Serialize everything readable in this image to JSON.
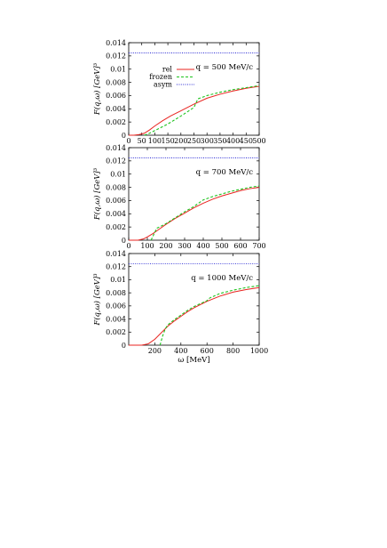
{
  "colors": {
    "rel": "#e8231f",
    "frozen": "#1ec31e",
    "asym": "#2a2ad4",
    "axis": "#000000"
  },
  "chart_data": [
    {
      "type": "line",
      "annotation": "q = 500 MeV/c",
      "ylabel": "F(q,ω) [GeV]³",
      "xlabel": "",
      "xlim": [
        0,
        500
      ],
      "ylim": [
        0,
        0.014
      ],
      "xticks": [
        0,
        50,
        100,
        150,
        200,
        250,
        300,
        350,
        400,
        450,
        500
      ],
      "yticks": [
        "0",
        "0.002",
        "0.004",
        "0.006",
        "0.008",
        "0.01",
        "0.012",
        "0.014"
      ],
      "yticks_values": [
        0,
        0.002,
        0.004,
        0.006,
        0.008,
        0.01,
        0.012,
        0.014
      ],
      "legend": {
        "position": "top-left",
        "entries": [
          "rel",
          "frozen",
          "asym"
        ]
      },
      "series": [
        {
          "name": "rel",
          "style": "solid",
          "x": [
            0,
            20,
            40,
            60,
            80,
            100,
            130,
            160,
            200,
            250,
            300,
            350,
            400,
            450,
            500
          ],
          "y": [
            0,
            0,
            0.0001,
            0.0003,
            0.0008,
            0.0014,
            0.0022,
            0.0029,
            0.0037,
            0.0047,
            0.0056,
            0.0062,
            0.0067,
            0.0071,
            0.0074
          ]
        },
        {
          "name": "frozen",
          "style": "dashed",
          "x": [
            60,
            80,
            100,
            150,
            200,
            250,
            265,
            300,
            350,
            400,
            450,
            500
          ],
          "y": [
            0,
            0.0003,
            0.0007,
            0.0017,
            0.0029,
            0.0042,
            0.0055,
            0.006,
            0.0065,
            0.0069,
            0.0072,
            0.0075
          ]
        },
        {
          "name": "asym",
          "style": "dotted",
          "x": [
            0,
            500
          ],
          "y": [
            0.01245,
            0.01245
          ]
        }
      ]
    },
    {
      "type": "line",
      "annotation": "q = 700 MeV/c",
      "ylabel": "F(q,ω) [GeV]³",
      "xlabel": "",
      "xlim": [
        0,
        700
      ],
      "ylim": [
        0,
        0.014
      ],
      "xticks": [
        0,
        100,
        200,
        300,
        400,
        500,
        600,
        700
      ],
      "yticks": [
        "0",
        "0.002",
        "0.004",
        "0.006",
        "0.008",
        "0.01",
        "0.012",
        "0.014"
      ],
      "yticks_values": [
        0,
        0.002,
        0.004,
        0.006,
        0.008,
        0.01,
        0.012,
        0.014
      ],
      "series": [
        {
          "name": "rel",
          "style": "solid",
          "x": [
            0,
            50,
            80,
            100,
            130,
            160,
            200,
            250,
            300,
            350,
            400,
            450,
            500,
            550,
            600,
            650,
            700
          ],
          "y": [
            0,
            0,
            0.0002,
            0.0005,
            0.001,
            0.0016,
            0.0024,
            0.0033,
            0.0041,
            0.0049,
            0.0056,
            0.0062,
            0.0067,
            0.0071,
            0.0075,
            0.0078,
            0.008
          ]
        },
        {
          "name": "frozen",
          "style": "dashed",
          "x": [
            120,
            130,
            140,
            150,
            200,
            250,
            300,
            350,
            380,
            400,
            450,
            500,
            550,
            600,
            650,
            700
          ],
          "y": [
            0,
            0.0006,
            0.0012,
            0.0018,
            0.0025,
            0.0034,
            0.0043,
            0.0051,
            0.0057,
            0.0061,
            0.0066,
            0.007,
            0.0074,
            0.0077,
            0.008,
            0.0082
          ]
        },
        {
          "name": "asym",
          "style": "dotted",
          "x": [
            0,
            700
          ],
          "y": [
            0.01245,
            0.01245
          ]
        }
      ]
    },
    {
      "type": "line",
      "annotation": "q = 1000 MeV/c",
      "ylabel": "F(q,ω) [GeV]³",
      "xlabel": "ω [MeV]",
      "xlim": [
        0,
        1000
      ],
      "ylim": [
        0,
        0.014
      ],
      "xticks": [
        200,
        400,
        600,
        800,
        1000
      ],
      "yticks": [
        "0",
        "0.002",
        "0.004",
        "0.006",
        "0.008",
        "0.01",
        "0.012",
        "0.014"
      ],
      "yticks_values": [
        0,
        0.002,
        0.004,
        0.006,
        0.008,
        0.01,
        0.012,
        0.014
      ],
      "series": [
        {
          "name": "rel",
          "style": "solid",
          "x": [
            0,
            100,
            150,
            200,
            250,
            300,
            350,
            400,
            450,
            500,
            600,
            700,
            800,
            900,
            1000
          ],
          "y": [
            0,
            0,
            0.0002,
            0.0009,
            0.0019,
            0.0029,
            0.0037,
            0.0044,
            0.0051,
            0.0057,
            0.0067,
            0.0075,
            0.0081,
            0.0085,
            0.0088
          ]
        },
        {
          "name": "frozen",
          "style": "dashed",
          "x": [
            240,
            260,
            280,
            300,
            350,
            400,
            450,
            500,
            600,
            620,
            700,
            800,
            900,
            1000
          ],
          "y": [
            0,
            0.0014,
            0.0025,
            0.0031,
            0.0039,
            0.0046,
            0.0053,
            0.0059,
            0.0068,
            0.0072,
            0.0079,
            0.0084,
            0.0088,
            0.0091
          ]
        },
        {
          "name": "asym",
          "style": "dotted",
          "x": [
            0,
            1000
          ],
          "y": [
            0.01245,
            0.01245
          ]
        }
      ]
    }
  ]
}
